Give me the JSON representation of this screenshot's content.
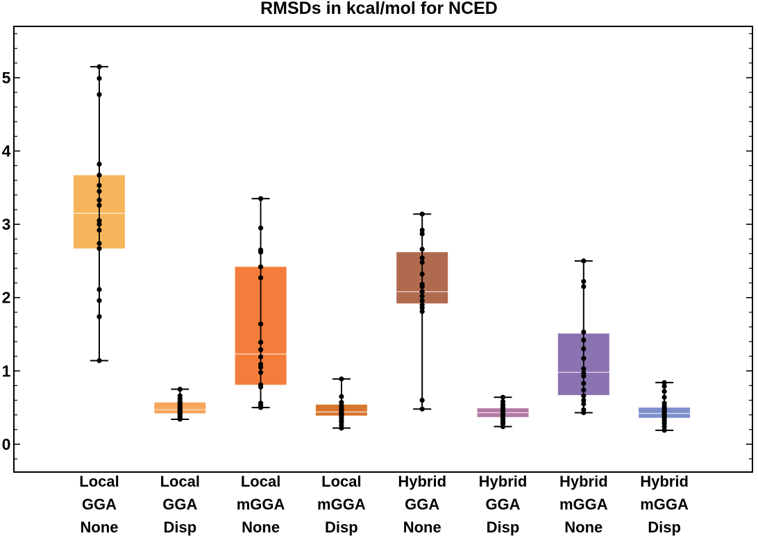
{
  "chart_data": {
    "type": "box",
    "title": "RMSDs in kcal/mol for NCED",
    "xlabel": "",
    "ylabel": "",
    "ylim": [
      -0.38,
      5.7
    ],
    "yticks": [
      "0",
      "1",
      "2",
      "3",
      "4",
      "5"
    ],
    "grid": false,
    "legend": "none",
    "categories": [
      {
        "lines": [
          "Local",
          "GGA",
          "None"
        ]
      },
      {
        "lines": [
          "Local",
          "GGA",
          "Disp"
        ]
      },
      {
        "lines": [
          "Local",
          "mGGA",
          "None"
        ]
      },
      {
        "lines": [
          "Local",
          "mGGA",
          "Disp"
        ]
      },
      {
        "lines": [
          "Hybrid",
          "GGA",
          "None"
        ]
      },
      {
        "lines": [
          "Hybrid",
          "GGA",
          "Disp"
        ]
      },
      {
        "lines": [
          "Hybrid",
          "mGGA",
          "None"
        ]
      },
      {
        "lines": [
          "Hybrid",
          "mGGA",
          "Disp"
        ]
      }
    ],
    "boxes": [
      {
        "color": "#f7b55b",
        "min": 1.14,
        "q1": 2.67,
        "median": 3.15,
        "q3": 3.67,
        "max": 5.15,
        "points": [
          5.15,
          4.99,
          4.77,
          3.82,
          3.67,
          3.53,
          3.45,
          3.33,
          3.26,
          3.05,
          3.0,
          2.92,
          2.74,
          2.67,
          2.11,
          1.96,
          1.74,
          1.14
        ]
      },
      {
        "color": "#f7a55b",
        "min": 0.34,
        "q1": 0.42,
        "median": 0.47,
        "q3": 0.57,
        "max": 0.75,
        "points": [
          0.75,
          0.66,
          0.62,
          0.58,
          0.56,
          0.54,
          0.52,
          0.5,
          0.48,
          0.47,
          0.46,
          0.45,
          0.43,
          0.42,
          0.4,
          0.38,
          0.36,
          0.34
        ]
      },
      {
        "color": "#f47d3b",
        "min": 0.5,
        "q1": 0.81,
        "median": 1.23,
        "q3": 2.42,
        "max": 3.35,
        "points": [
          3.35,
          2.95,
          2.65,
          2.62,
          2.42,
          2.27,
          1.64,
          1.39,
          1.29,
          1.19,
          1.09,
          1.05,
          0.98,
          0.81,
          0.78,
          0.56,
          0.53,
          0.5
        ]
      },
      {
        "color": "#d8752f",
        "min": 0.22,
        "q1": 0.39,
        "median": 0.44,
        "q3": 0.54,
        "max": 0.89,
        "points": [
          0.89,
          0.65,
          0.57,
          0.53,
          0.5,
          0.48,
          0.46,
          0.44,
          0.43,
          0.42,
          0.41,
          0.4,
          0.38,
          0.36,
          0.33,
          0.3,
          0.26,
          0.22
        ]
      },
      {
        "color": "#b06a4e",
        "min": 0.48,
        "q1": 1.92,
        "median": 2.08,
        "q3": 2.62,
        "max": 3.14,
        "points": [
          3.14,
          2.92,
          2.87,
          2.66,
          2.54,
          2.48,
          2.32,
          2.18,
          2.15,
          2.08,
          2.02,
          1.96,
          1.9,
          1.86,
          1.81,
          0.6,
          0.48
        ]
      },
      {
        "color": "#b17aa4",
        "min": 0.24,
        "q1": 0.37,
        "median": 0.43,
        "q3": 0.49,
        "max": 0.64,
        "points": [
          0.64,
          0.58,
          0.54,
          0.51,
          0.49,
          0.47,
          0.45,
          0.44,
          0.43,
          0.42,
          0.4,
          0.38,
          0.36,
          0.34,
          0.31,
          0.28,
          0.24
        ]
      },
      {
        "color": "#8b72b1",
        "min": 0.43,
        "q1": 0.67,
        "median": 0.98,
        "q3": 1.51,
        "max": 2.5,
        "points": [
          2.5,
          2.22,
          2.15,
          1.53,
          1.42,
          1.3,
          1.17,
          1.03,
          0.97,
          0.93,
          0.83,
          0.74,
          0.66,
          0.6,
          0.55,
          0.47,
          0.43
        ]
      },
      {
        "color": "#7e90cb",
        "min": 0.19,
        "q1": 0.36,
        "median": 0.42,
        "q3": 0.5,
        "max": 0.84,
        "points": [
          0.84,
          0.79,
          0.72,
          0.64,
          0.56,
          0.52,
          0.49,
          0.46,
          0.44,
          0.42,
          0.41,
          0.39,
          0.37,
          0.35,
          0.32,
          0.28,
          0.24,
          0.19
        ]
      }
    ]
  }
}
